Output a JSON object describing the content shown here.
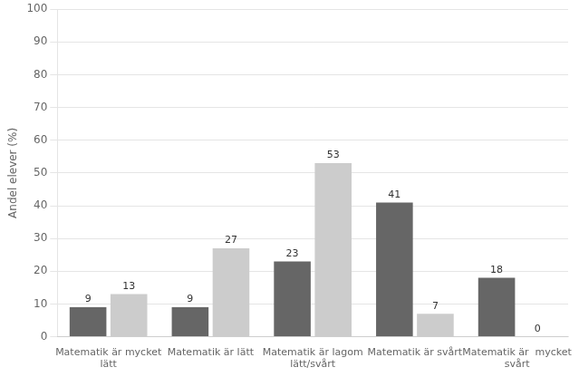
{
  "chart_data": {
    "type": "bar",
    "categories": [
      "Matematik är mycket\nlätt",
      "Matematik är lätt",
      "Matematik är lagom\nlätt/svårt",
      "Matematik är svårt",
      "Matematik är  mycket\nsvårt"
    ],
    "series": [
      {
        "color": "#666666",
        "values": [
          9,
          9,
          23,
          41,
          18
        ]
      },
      {
        "color": "#cccccc",
        "values": [
          13,
          27,
          53,
          7,
          0
        ]
      }
    ],
    "ylabel": "Andel elever (%)",
    "ylim": [
      0,
      100
    ],
    "yticks": [
      0,
      10,
      20,
      30,
      40,
      50,
      60,
      70,
      80,
      90,
      100
    ],
    "grid": true,
    "data_labels": true
  }
}
